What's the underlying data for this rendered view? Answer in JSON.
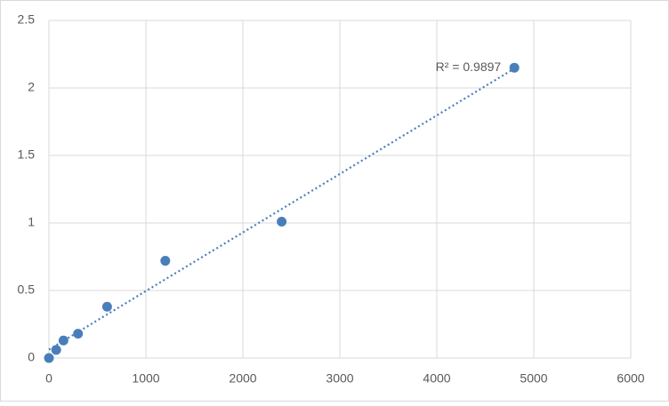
{
  "chart_data": {
    "type": "scatter",
    "x": [
      0,
      75,
      150,
      300,
      600,
      1200,
      2400,
      4800
    ],
    "values": [
      0,
      0.06,
      0.13,
      0.18,
      0.38,
      0.72,
      1.01,
      2.15
    ],
    "color": "#4a7ebb",
    "trendline": "linear",
    "annotation": "R² = 0.9897",
    "xlim": [
      0,
      6000
    ],
    "xticks": [
      0,
      1000,
      2000,
      3000,
      4000,
      5000,
      6000
    ],
    "ylim": [
      0,
      2.5
    ],
    "yticks": [
      0,
      0.5,
      1,
      1.5,
      2,
      2.5
    ],
    "grid": true
  }
}
